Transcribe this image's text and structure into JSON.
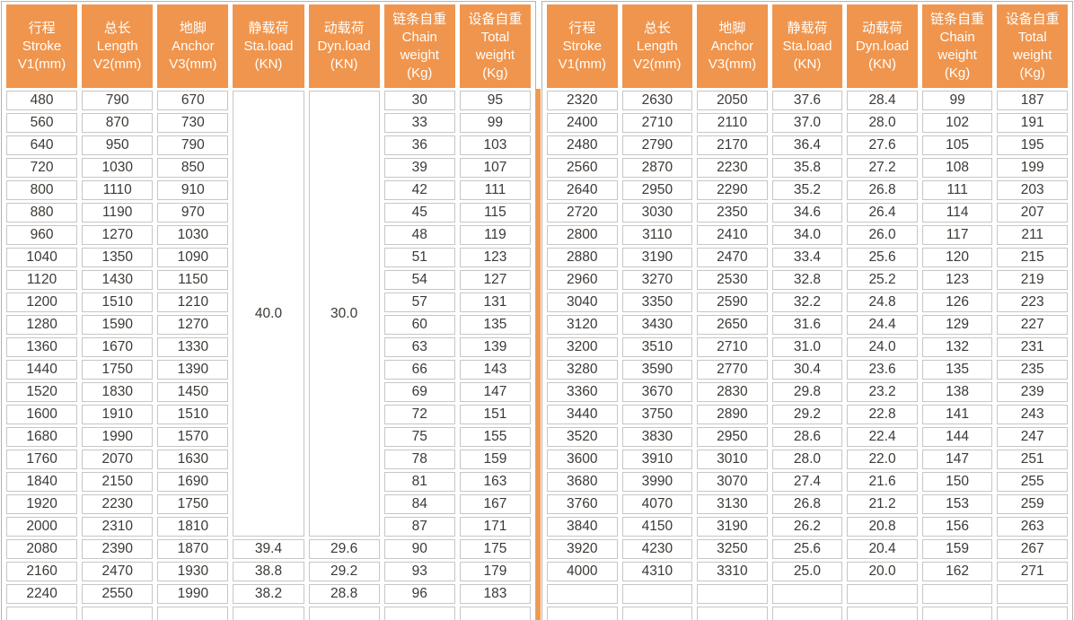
{
  "colors": {
    "header_bg": "#f0954d",
    "header_text": "#ffffff",
    "divider": "#f09a50",
    "cell_border": "#c6c6c6",
    "outer_border": "#b3b3b3",
    "data_text": "#3d3935"
  },
  "chart_data": {
    "type": "table",
    "note": "Hoist/lift specification table, two side-by-side panels sharing identical column headers"
  },
  "tables": {
    "columns": [
      {
        "name": "stroke",
        "lines": [
          "行程",
          "Stroke",
          "V1(mm)"
        ]
      },
      {
        "name": "length",
        "lines": [
          "总长",
          "Length",
          "V2(mm)"
        ]
      },
      {
        "name": "anchor",
        "lines": [
          "地脚",
          "Anchor",
          "V3(mm)"
        ]
      },
      {
        "name": "static-load",
        "lines": [
          "静载荷",
          "Sta.load",
          "(KN)"
        ]
      },
      {
        "name": "dynamic-load",
        "lines": [
          "动载荷",
          "Dyn.load",
          "(KN)"
        ]
      },
      {
        "name": "chain-weight",
        "lines": [
          "链条自重",
          "Chain",
          "weight",
          "(Kg)"
        ]
      },
      {
        "name": "total-weight",
        "lines": [
          "设备自重",
          "Total",
          "weight",
          "(Kg)"
        ]
      }
    ],
    "left": {
      "merged": {
        "span": 20,
        "values": {
          "3": "40.0",
          "4": "30.0"
        }
      },
      "rows": [
        [
          "480",
          "790",
          "670",
          null,
          null,
          "30",
          "95"
        ],
        [
          "560",
          "870",
          "730",
          null,
          null,
          "33",
          "99"
        ],
        [
          "640",
          "950",
          "790",
          null,
          null,
          "36",
          "103"
        ],
        [
          "720",
          "1030",
          "850",
          null,
          null,
          "39",
          "107"
        ],
        [
          "800",
          "1110",
          "910",
          null,
          null,
          "42",
          "111"
        ],
        [
          "880",
          "1190",
          "970",
          null,
          null,
          "45",
          "115"
        ],
        [
          "960",
          "1270",
          "1030",
          null,
          null,
          "48",
          "119"
        ],
        [
          "1040",
          "1350",
          "1090",
          null,
          null,
          "51",
          "123"
        ],
        [
          "1120",
          "1430",
          "1150",
          null,
          null,
          "54",
          "127"
        ],
        [
          "1200",
          "1510",
          "1210",
          null,
          null,
          "57",
          "131"
        ],
        [
          "1280",
          "1590",
          "1270",
          null,
          null,
          "60",
          "135"
        ],
        [
          "1360",
          "1670",
          "1330",
          null,
          null,
          "63",
          "139"
        ],
        [
          "1440",
          "1750",
          "1390",
          null,
          null,
          "66",
          "143"
        ],
        [
          "1520",
          "1830",
          "1450",
          null,
          null,
          "69",
          "147"
        ],
        [
          "1600",
          "1910",
          "1510",
          null,
          null,
          "72",
          "151"
        ],
        [
          "1680",
          "1990",
          "1570",
          null,
          null,
          "75",
          "155"
        ],
        [
          "1760",
          "2070",
          "1630",
          null,
          null,
          "78",
          "159"
        ],
        [
          "1840",
          "2150",
          "1690",
          null,
          null,
          "81",
          "163"
        ],
        [
          "1920",
          "2230",
          "1750",
          null,
          null,
          "84",
          "167"
        ],
        [
          "2000",
          "2310",
          "1810",
          null,
          null,
          "87",
          "171"
        ],
        [
          "2080",
          "2390",
          "1870",
          "39.4",
          "29.6",
          "90",
          "175"
        ],
        [
          "2160",
          "2470",
          "1930",
          "38.8",
          "29.2",
          "93",
          "179"
        ],
        [
          "2240",
          "2550",
          "1990",
          "38.2",
          "28.8",
          "96",
          "183"
        ],
        [
          "",
          "",
          "",
          "",
          "",
          "",
          ""
        ]
      ]
    },
    "right": {
      "merged": null,
      "rows": [
        [
          "2320",
          "2630",
          "2050",
          "37.6",
          "28.4",
          "99",
          "187"
        ],
        [
          "2400",
          "2710",
          "2110",
          "37.0",
          "28.0",
          "102",
          "191"
        ],
        [
          "2480",
          "2790",
          "2170",
          "36.4",
          "27.6",
          "105",
          "195"
        ],
        [
          "2560",
          "2870",
          "2230",
          "35.8",
          "27.2",
          "108",
          "199"
        ],
        [
          "2640",
          "2950",
          "2290",
          "35.2",
          "26.8",
          "111",
          "203"
        ],
        [
          "2720",
          "3030",
          "2350",
          "34.6",
          "26.4",
          "114",
          "207"
        ],
        [
          "2800",
          "3110",
          "2410",
          "34.0",
          "26.0",
          "117",
          "211"
        ],
        [
          "2880",
          "3190",
          "2470",
          "33.4",
          "25.6",
          "120",
          "215"
        ],
        [
          "2960",
          "3270",
          "2530",
          "32.8",
          "25.2",
          "123",
          "219"
        ],
        [
          "3040",
          "3350",
          "2590",
          "32.2",
          "24.8",
          "126",
          "223"
        ],
        [
          "3120",
          "3430",
          "2650",
          "31.6",
          "24.4",
          "129",
          "227"
        ],
        [
          "3200",
          "3510",
          "2710",
          "31.0",
          "24.0",
          "132",
          "231"
        ],
        [
          "3280",
          "3590",
          "2770",
          "30.4",
          "23.6",
          "135",
          "235"
        ],
        [
          "3360",
          "3670",
          "2830",
          "29.8",
          "23.2",
          "138",
          "239"
        ],
        [
          "3440",
          "3750",
          "2890",
          "29.2",
          "22.8",
          "141",
          "243"
        ],
        [
          "3520",
          "3830",
          "2950",
          "28.6",
          "22.4",
          "144",
          "247"
        ],
        [
          "3600",
          "3910",
          "3010",
          "28.0",
          "22.0",
          "147",
          "251"
        ],
        [
          "3680",
          "3990",
          "3070",
          "27.4",
          "21.6",
          "150",
          "255"
        ],
        [
          "3760",
          "4070",
          "3130",
          "26.8",
          "21.2",
          "153",
          "259"
        ],
        [
          "3840",
          "4150",
          "3190",
          "26.2",
          "20.8",
          "156",
          "263"
        ],
        [
          "3920",
          "4230",
          "3250",
          "25.6",
          "20.4",
          "159",
          "267"
        ],
        [
          "4000",
          "4310",
          "3310",
          "25.0",
          "20.0",
          "162",
          "271"
        ],
        [
          "",
          "",
          "",
          "",
          "",
          "",
          ""
        ],
        [
          "",
          "",
          "",
          "",
          "",
          "",
          ""
        ]
      ]
    }
  }
}
